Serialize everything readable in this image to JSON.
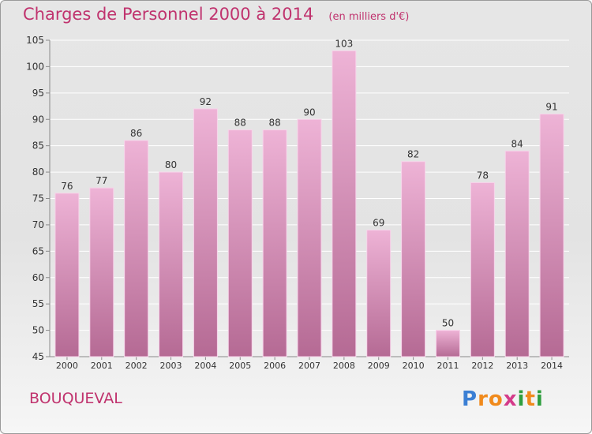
{
  "title": "Charges de Personnel 2000 à 2014",
  "unit_note": "(en milliers d'€)",
  "commune": "BOUQUEVAL",
  "logo": {
    "letters": [
      "P",
      "r",
      "o",
      "x",
      "i",
      "t",
      "i"
    ],
    "colors": [
      "#3b7fd4",
      "#f08a1c",
      "#f08a1c",
      "#d43b8a",
      "#2e9e3e",
      "#f08a1c",
      "#2e9e3e"
    ]
  },
  "colors": {
    "title": "#c0336e",
    "bar_light": "#eeb3d6",
    "bar_dark": "#b56a94",
    "axis": "#8a8a8a",
    "grid": "#ffffff"
  },
  "chart_data": {
    "type": "bar",
    "categories": [
      "2000",
      "2001",
      "2002",
      "2003",
      "2004",
      "2005",
      "2006",
      "2007",
      "2008",
      "2009",
      "2010",
      "2011",
      "2012",
      "2013",
      "2014"
    ],
    "values": [
      76,
      77,
      86,
      80,
      92,
      88,
      88,
      90,
      103,
      69,
      82,
      50,
      78,
      84,
      91
    ],
    "ylim": [
      45,
      105
    ],
    "yticks": [
      45,
      50,
      55,
      60,
      65,
      70,
      75,
      80,
      85,
      90,
      95,
      100,
      105
    ],
    "grid": true,
    "legend": "none"
  }
}
